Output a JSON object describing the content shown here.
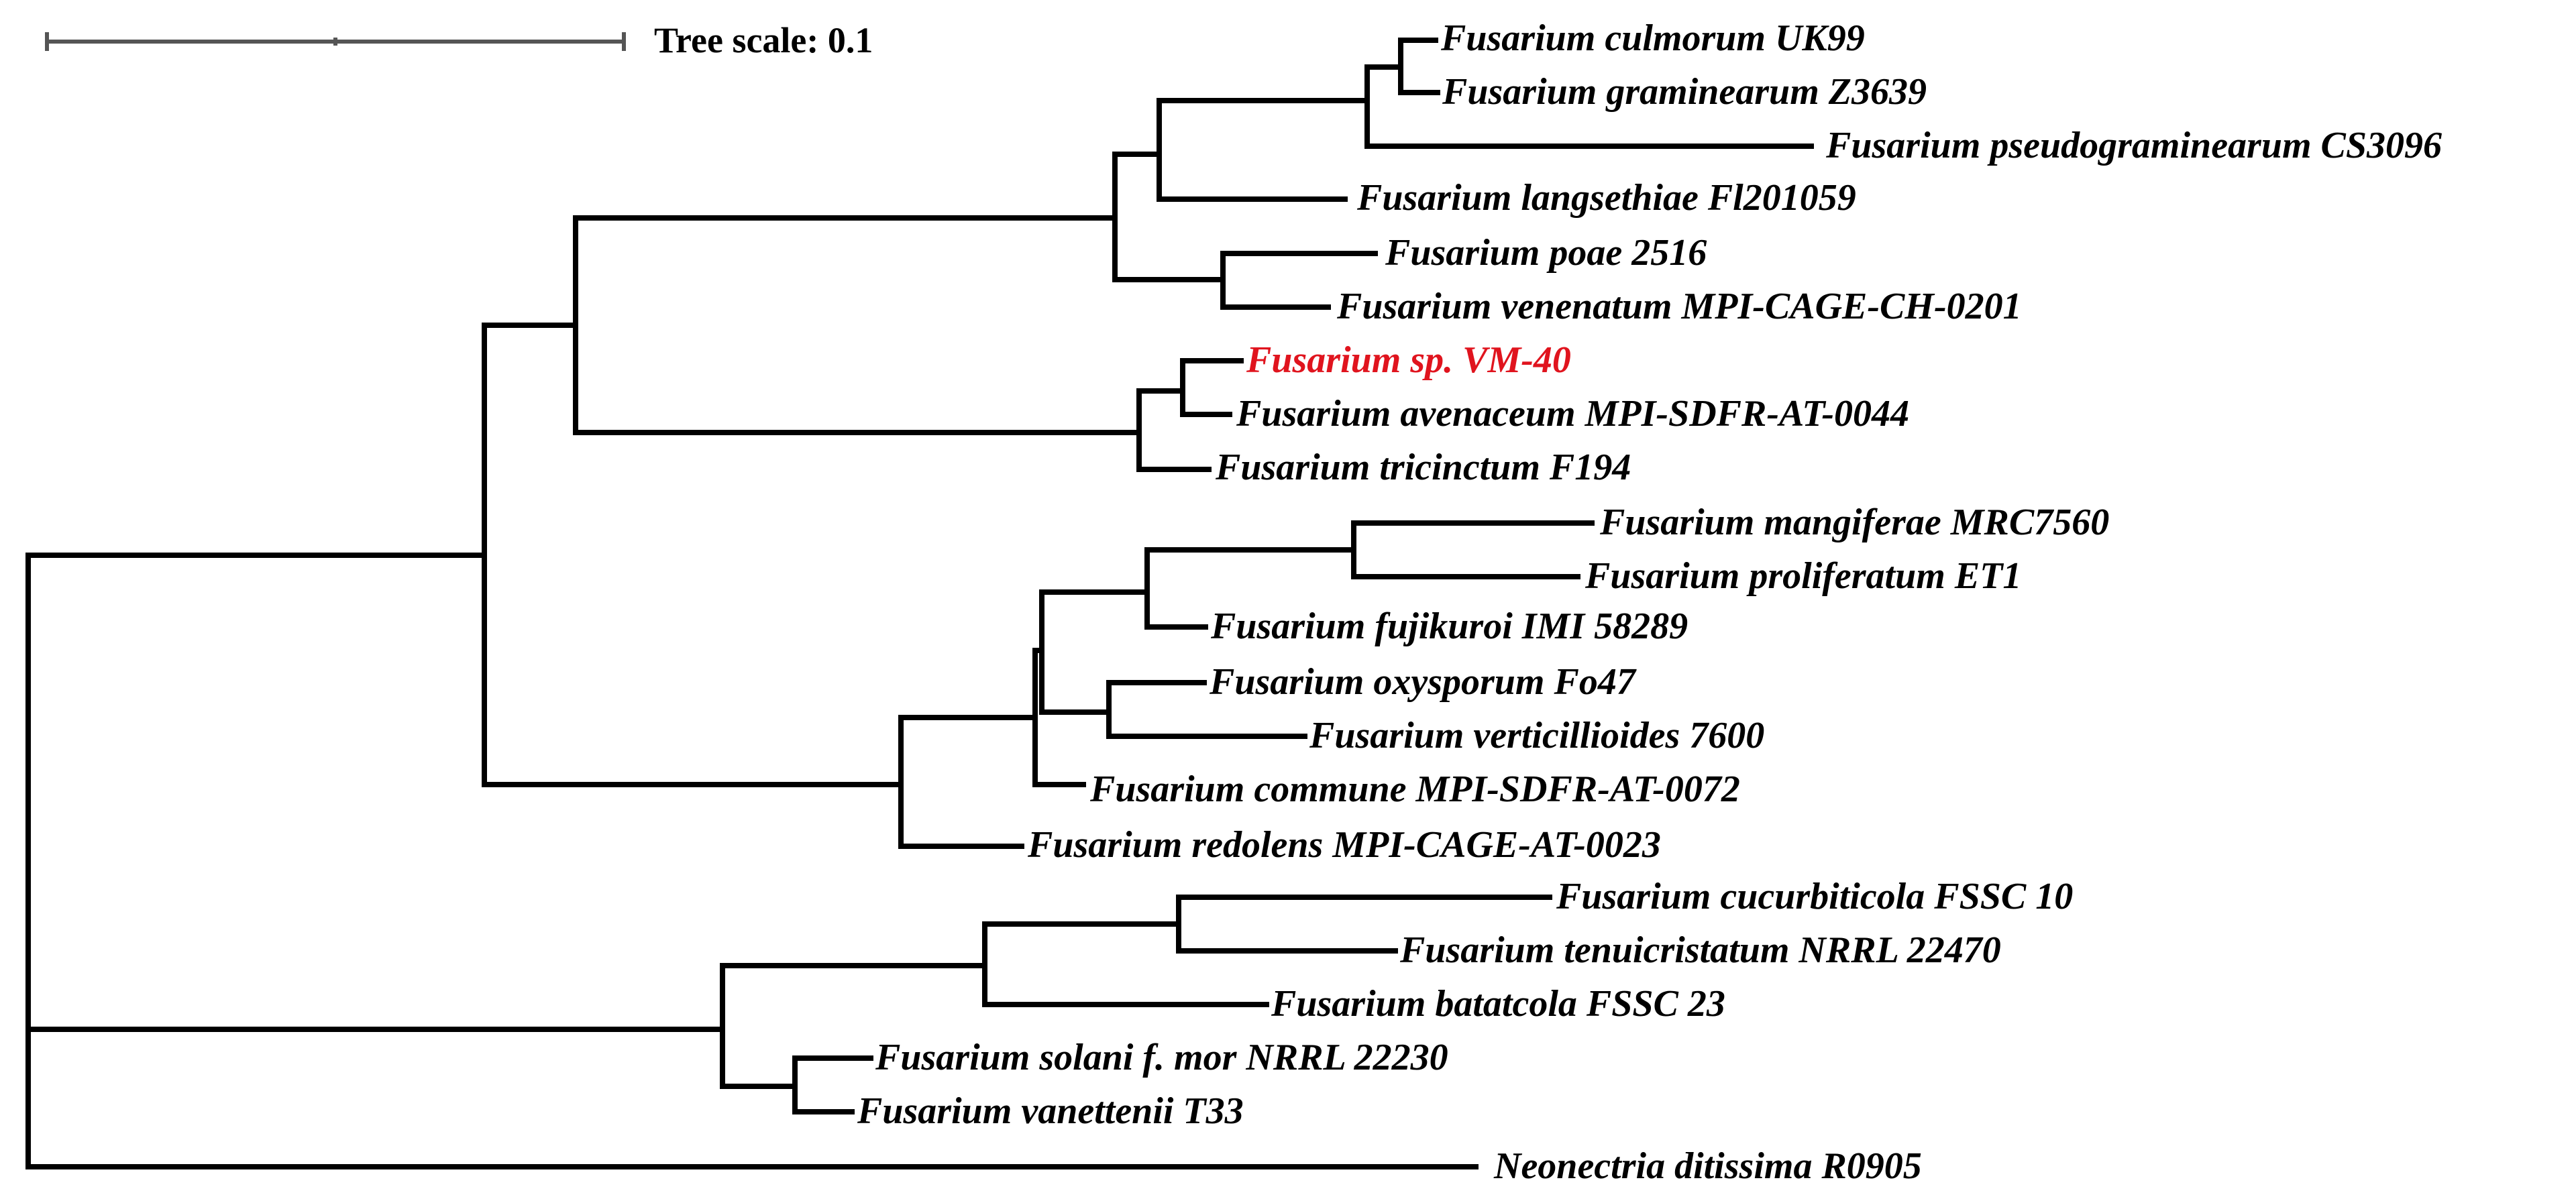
{
  "tree_scale": {
    "label": "Tree scale: 0.1"
  },
  "colors": {
    "highlight": "#e0141e",
    "default": "#000000"
  },
  "taxa": [
    {
      "name": "Fusarium culmorum UK99"
    },
    {
      "name": "Fusarium graminearum Z3639"
    },
    {
      "name": "Fusarium pseudograminearum CS3096"
    },
    {
      "name": "Fusarium langsethiae Fl201059"
    },
    {
      "name": "Fusarium poae 2516"
    },
    {
      "name": "Fusarium venenatum MPI-CAGE-CH-0201"
    },
    {
      "name": "Fusarium sp. VM-40",
      "highlighted": true
    },
    {
      "name": "Fusarium avenaceum MPI-SDFR-AT-0044"
    },
    {
      "name": "Fusarium tricinctum F194"
    },
    {
      "name": "Fusarium mangiferae MRC7560"
    },
    {
      "name": "Fusarium proliferatum ET1"
    },
    {
      "name": "Fusarium fujikuroi IMI 58289"
    },
    {
      "name": "Fusarium oxysporum Fo47"
    },
    {
      "name": "Fusarium verticillioides 7600"
    },
    {
      "name": "Fusarium commune MPI-SDFR-AT-0072"
    },
    {
      "name": "Fusarium redolens MPI-CAGE-AT-0023"
    },
    {
      "name": "Fusarium cucurbiticola FSSC 10"
    },
    {
      "name": "Fusarium tenuicristatum NRRL 22470"
    },
    {
      "name": "Fusarium batatcola FSSC 23"
    },
    {
      "name": "Fusarium solani f. mor NRRL 22230"
    },
    {
      "name": "Fusarium vanettenii T33"
    },
    {
      "name": "Neonectria ditissima R0905"
    }
  ]
}
